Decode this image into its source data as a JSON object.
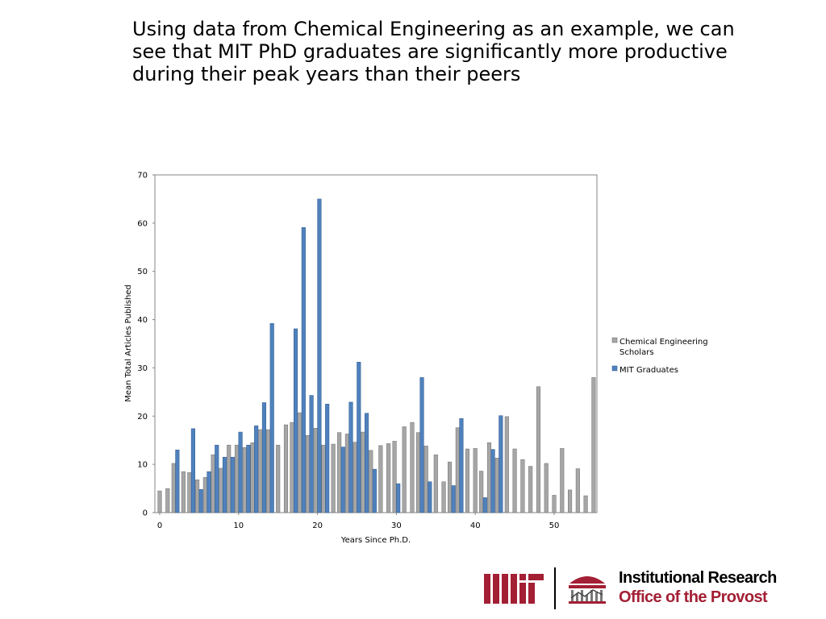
{
  "slide": {
    "title": "Using data from Chemical Engineering as an example, we can see that MIT PhD graduates are significantly more productive during their peak years than their peers"
  },
  "footer": {
    "line1": "Institutional Research",
    "line2": "Office of the Provost",
    "logo_alt": "MIT",
    "brand_color": "#a31f34"
  },
  "chart_data": {
    "type": "bar",
    "xlabel": "Years Since Ph.D.",
    "ylabel": "Mean Total Articles Published",
    "ylim": [
      0,
      70
    ],
    "yticks": [
      0,
      10,
      20,
      30,
      40,
      50,
      60,
      70
    ],
    "xlim": [
      0,
      55
    ],
    "xticks": [
      0,
      10,
      20,
      30,
      40,
      50
    ],
    "grid": false,
    "legend_position": "right",
    "series": [
      {
        "name": "Chemical Engineering Scholars",
        "color": "#a6a6a6",
        "x": [
          0,
          1,
          2,
          3,
          4,
          5,
          6,
          7,
          8,
          9,
          10,
          11,
          12,
          13,
          14,
          15,
          16,
          17,
          18,
          19,
          20,
          21,
          22,
          23,
          24,
          25,
          26,
          27,
          28,
          29,
          30,
          31,
          32,
          33,
          34,
          35,
          36,
          37,
          38,
          39,
          40,
          41,
          42,
          43,
          44,
          45,
          46,
          47,
          48,
          49,
          50,
          51,
          52,
          53,
          54
        ],
        "values": [
          4.5,
          5,
          10.2,
          8.5,
          8.3,
          6.8,
          7.3,
          12,
          9.2,
          14,
          14,
          13.5,
          14.5,
          17.2,
          17.2,
          14,
          18.2,
          18.7,
          20.7,
          16,
          17.5,
          14,
          14.2,
          16.6,
          16.3,
          14.6,
          16.7,
          12.9,
          13.9,
          14.3,
          14.8,
          17.8,
          18.7,
          16.6,
          13.8,
          12,
          6.4,
          10.5,
          17.6,
          13.2,
          13.3,
          8.6,
          14.5,
          11.3,
          19.9,
          13.2,
          11,
          9.6,
          26.1,
          10.2,
          3.6,
          13.3,
          4.7,
          9.1,
          3.5
        ]
      },
      {
        "name": "MIT Graduates",
        "color": "#4f81bd",
        "x": [
          2,
          4,
          5,
          6,
          7,
          8,
          9,
          10,
          11,
          12,
          13,
          14,
          17,
          18,
          19,
          20,
          21,
          23,
          24,
          25,
          26,
          27,
          30,
          33,
          34,
          37,
          38,
          41,
          42,
          43
        ],
        "values": [
          13,
          17.4,
          4.8,
          8.5,
          14,
          11.5,
          11.5,
          16.7,
          14,
          18,
          22.8,
          39.2,
          38.1,
          59.1,
          24.3,
          65,
          22.5,
          13.6,
          22.9,
          31.2,
          20.6,
          9,
          6,
          28,
          6.4,
          5.6,
          19.5,
          3.1,
          13.1,
          20.1
        ]
      }
    ],
    "extra": [
      {
        "series": "Chemical Engineering Scholars",
        "x": 55,
        "value": 28
      }
    ]
  }
}
